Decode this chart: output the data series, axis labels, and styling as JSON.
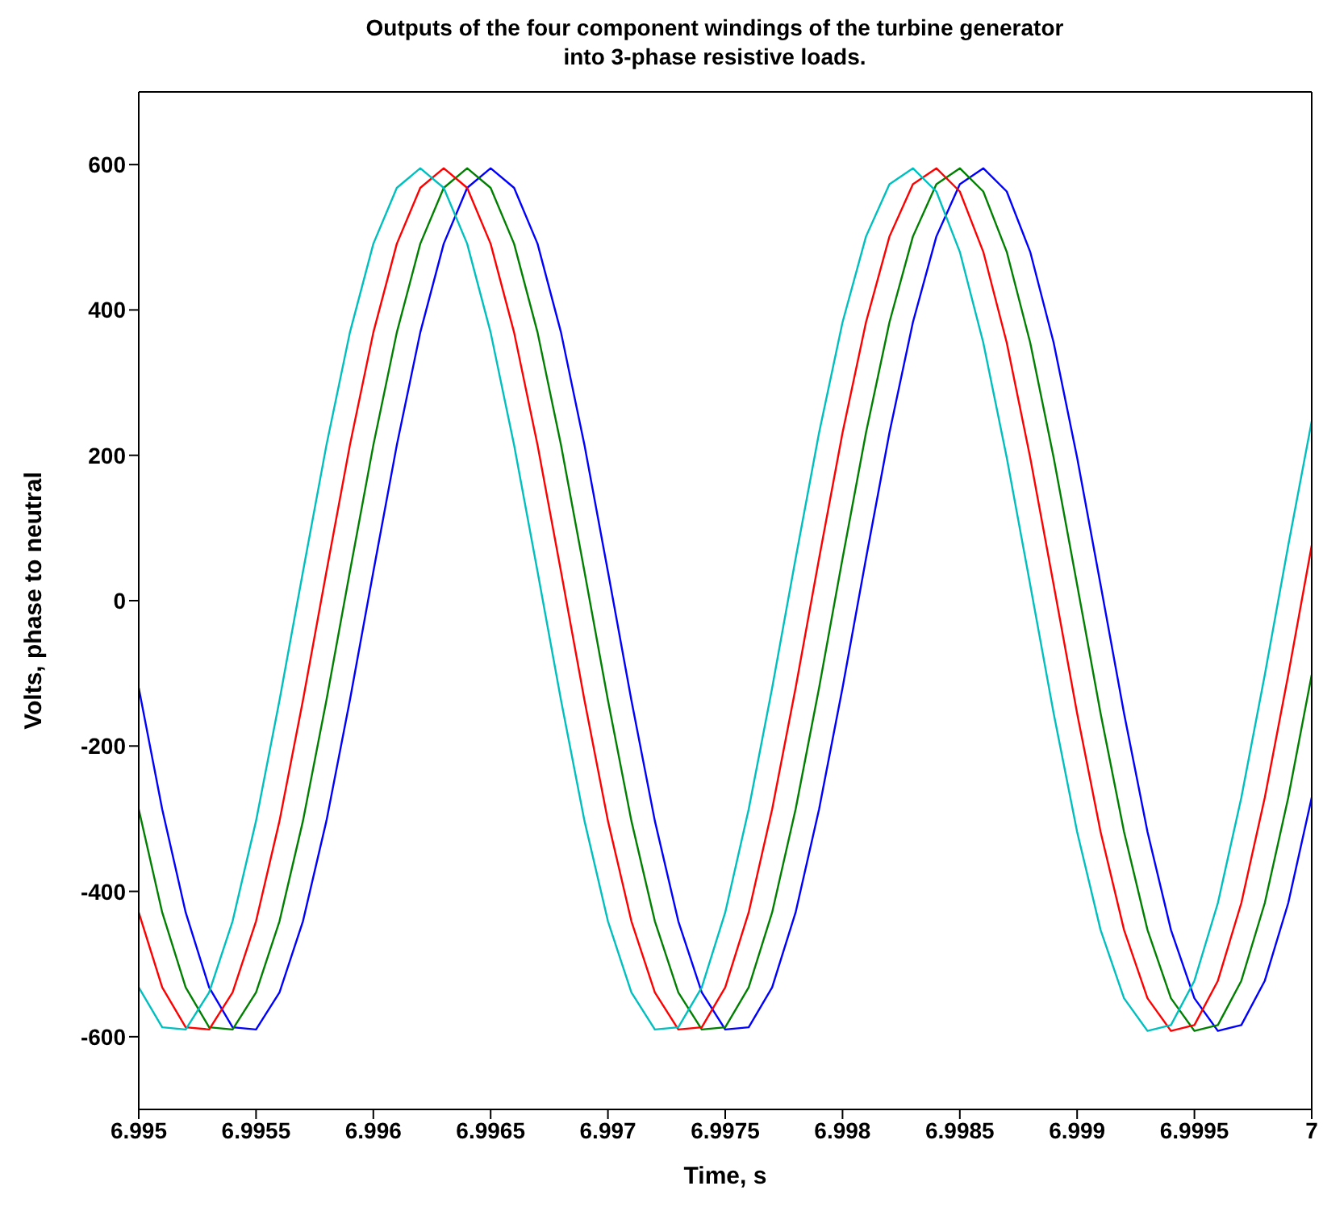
{
  "chart_data": {
    "type": "line",
    "title": "Outputs of the four component windings of the turbine generator\ninto 3-phase resistive loads.",
    "xlabel": "Time, s",
    "ylabel": "Volts, phase to neutral",
    "x": [
      6.995,
      6.9951,
      6.9952,
      6.9953,
      6.9954,
      6.9955,
      6.9956,
      6.9957,
      6.9958,
      6.9959,
      6.996,
      6.9961,
      6.9962,
      6.9963,
      6.9964,
      6.9965,
      6.9966,
      6.9967,
      6.9968,
      6.9969,
      6.997,
      6.9971,
      6.9972,
      6.9973,
      6.9974,
      6.9975,
      6.9976,
      6.9977,
      6.9978,
      6.9979,
      6.998,
      6.9981,
      6.9982,
      6.9983,
      6.9984,
      6.9985,
      6.9986,
      6.9987,
      6.9988,
      6.9989,
      6.999,
      6.9991,
      6.9992,
      6.9993,
      6.9994,
      6.9995,
      6.9996,
      6.9997,
      6.9998,
      6.9999,
      7
    ],
    "series": [
      {
        "color": "#0000ff",
        "values": [
          -120,
          -287,
          -429,
          -532,
          -587,
          -590,
          -539,
          -441,
          -303,
          -137,
          40,
          214,
          369,
          491,
          568,
          595,
          568,
          491,
          369,
          214,
          40,
          -137,
          -303,
          -441,
          -539,
          -590,
          -587,
          -532,
          -429,
          -287,
          -120,
          58,
          231,
          383,
          501,
          573,
          595,
          563,
          480,
          355,
          197,
          22,
          -155,
          -318,
          -453,
          -547,
          -592,
          -584,
          -523,
          -416,
          -271
        ]
      },
      {
        "color": "#008000",
        "values": [
          -287,
          -429,
          -532,
          -587,
          -590,
          -539,
          -441,
          -303,
          -137,
          40,
          214,
          369,
          491,
          568,
          595,
          568,
          491,
          369,
          214,
          40,
          -137,
          -303,
          -441,
          -539,
          -590,
          -587,
          -532,
          -429,
          -287,
          -120,
          58,
          231,
          383,
          501,
          573,
          595,
          563,
          480,
          355,
          197,
          22,
          -155,
          -318,
          -453,
          -547,
          -592,
          -584,
          -523,
          -416,
          -271,
          -102
        ]
      },
      {
        "color": "#ff0000",
        "values": [
          -429,
          -532,
          -587,
          -590,
          -539,
          -441,
          -303,
          -137,
          40,
          214,
          369,
          491,
          568,
          595,
          568,
          491,
          369,
          214,
          40,
          -137,
          -303,
          -441,
          -539,
          -590,
          -587,
          -532,
          -429,
          -287,
          -120,
          58,
          231,
          383,
          501,
          573,
          595,
          563,
          480,
          355,
          197,
          22,
          -155,
          -318,
          -453,
          -547,
          -592,
          -584,
          -523,
          -416,
          -271,
          -102,
          76
        ]
      },
      {
        "color": "#00bfbf",
        "values": [
          -532,
          -587,
          -590,
          -539,
          -441,
          -303,
          -137,
          40,
          214,
          369,
          491,
          568,
          595,
          568,
          491,
          369,
          214,
          40,
          -137,
          -303,
          -441,
          -539,
          -590,
          -587,
          -532,
          -429,
          -287,
          -120,
          58,
          231,
          383,
          501,
          573,
          595,
          563,
          480,
          355,
          197,
          22,
          -155,
          -318,
          -453,
          -547,
          -592,
          -584,
          -523,
          -416,
          -271,
          -102,
          76,
          247
        ]
      }
    ],
    "xlim": [
      6.995,
      7
    ],
    "xticks": [
      6.995,
      6.9955,
      6.996,
      6.9965,
      6.997,
      6.9975,
      6.998,
      6.9985,
      6.999,
      6.9995,
      7
    ],
    "ylim": [
      -700,
      700
    ],
    "yticks": [
      -600,
      -400,
      -200,
      0,
      200,
      400,
      600
    ],
    "grid": false,
    "legend": false,
    "marker": "none",
    "line_style": "solid"
  }
}
